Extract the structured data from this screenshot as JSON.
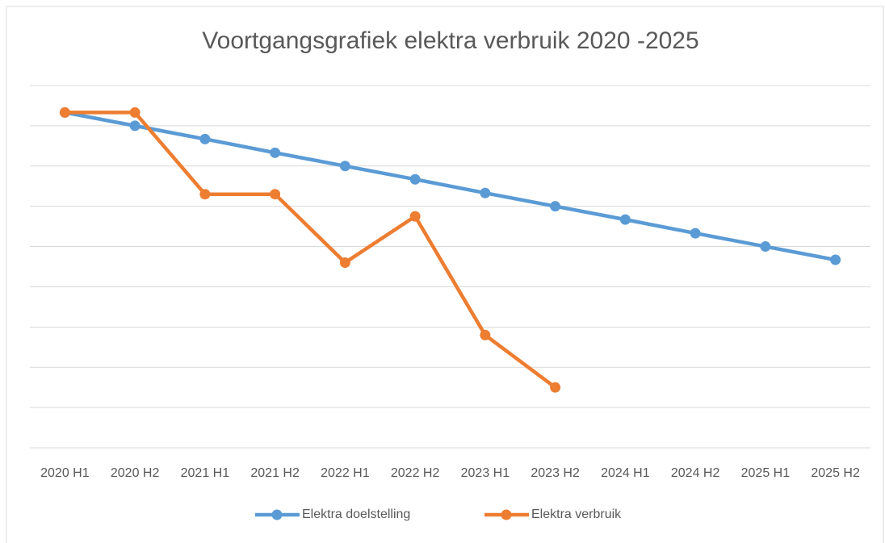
{
  "chart_data": {
    "type": "line",
    "title": "Voortgangsgrafiek elektra verbruik 2020 -2025",
    "categories": [
      "2020 H1",
      "2020 H2",
      "2021 H1",
      "2021 H2",
      "2022 H1",
      "2022 H2",
      "2023 H1",
      "2023 H2",
      "2024 H1",
      "2024 H2",
      "2025 H1",
      "2025 H2"
    ],
    "series": [
      {
        "name": "Elektra doelstelling",
        "color": "#5b9bd5",
        "values": [
          8.33,
          8.0,
          7.67,
          7.33,
          7.0,
          6.67,
          6.33,
          6.0,
          5.67,
          5.33,
          5.0,
          4.67
        ]
      },
      {
        "name": "Elektra verbruik",
        "color": "#ed7d31",
        "values": [
          8.33,
          8.33,
          6.3,
          6.3,
          4.6,
          5.75,
          2.8,
          1.5,
          null,
          null,
          null,
          null
        ]
      }
    ],
    "ylim": [
      0,
      9
    ],
    "yticks": [
      0,
      1,
      2,
      3,
      4,
      5,
      6,
      7,
      8,
      9
    ],
    "grid": true,
    "legend": "bottom"
  }
}
